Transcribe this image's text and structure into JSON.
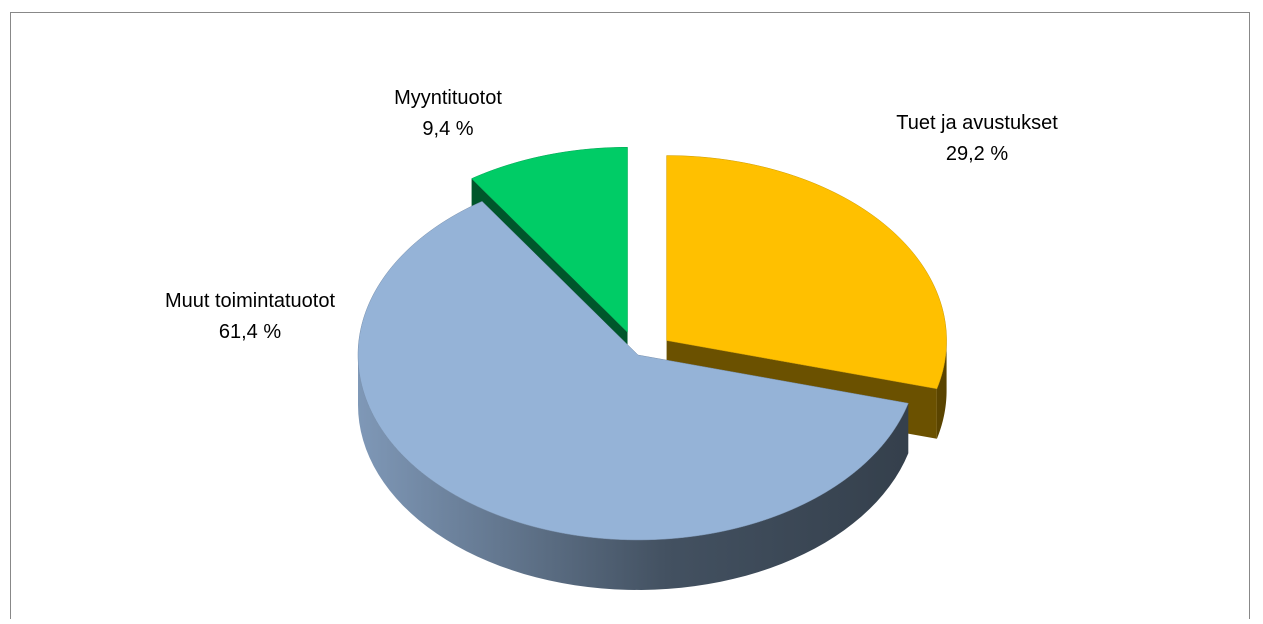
{
  "chart_data": {
    "type": "pie",
    "categories": [
      "Tuet ja avustukset",
      "Muut toimintatuotot",
      "Myyntituotot"
    ],
    "values": [
      29.2,
      61.4,
      9.4
    ],
    "value_labels": [
      "29,2 %",
      "61,4 %",
      "9,4 %"
    ],
    "colors": [
      "#ffc000",
      "#95b3d7",
      "#00cc66"
    ],
    "exploded": [
      true,
      false,
      true
    ]
  }
}
